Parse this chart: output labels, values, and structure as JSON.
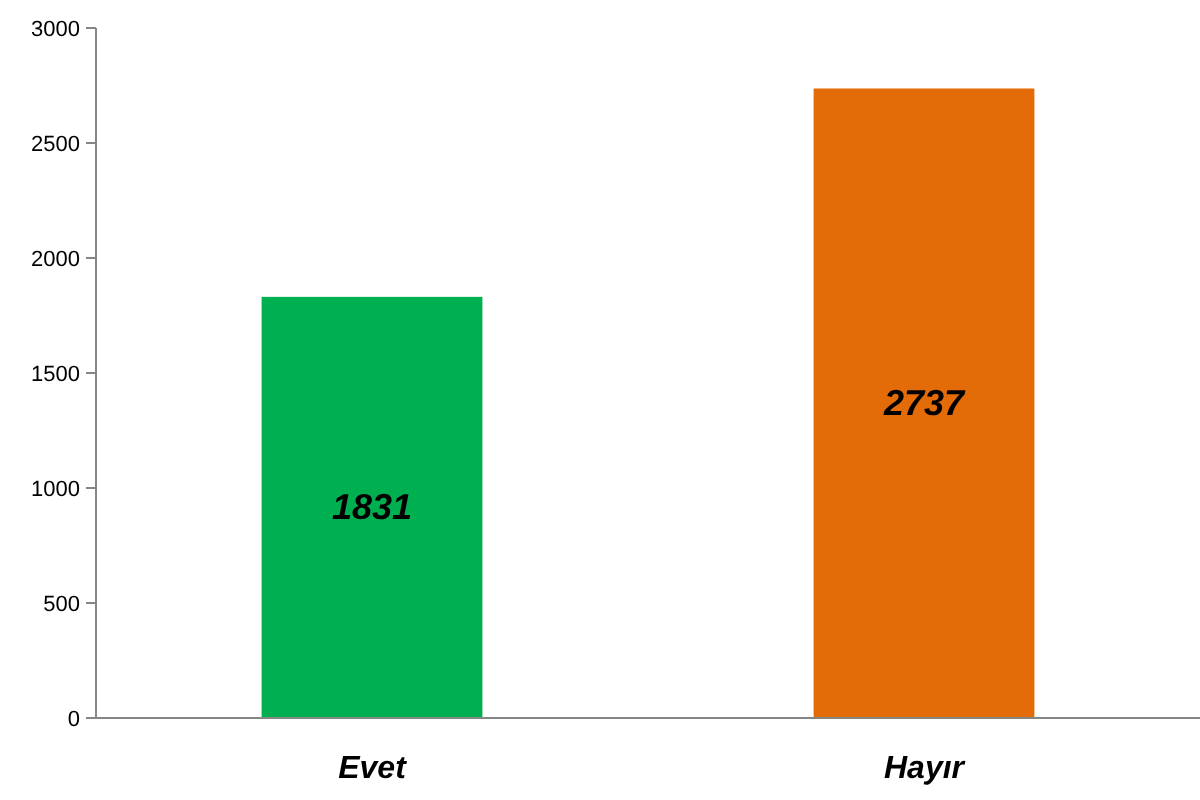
{
  "chart_data": {
    "type": "bar",
    "categories": [
      "Evet",
      "Hayır"
    ],
    "values": [
      1831,
      2737
    ],
    "colors": [
      "#00b050",
      "#e36c09"
    ],
    "ylim": [
      0,
      3000
    ],
    "yticks": [
      0,
      500,
      1000,
      1500,
      2000,
      2500,
      3000
    ],
    "data_labels": true,
    "grid": false
  }
}
